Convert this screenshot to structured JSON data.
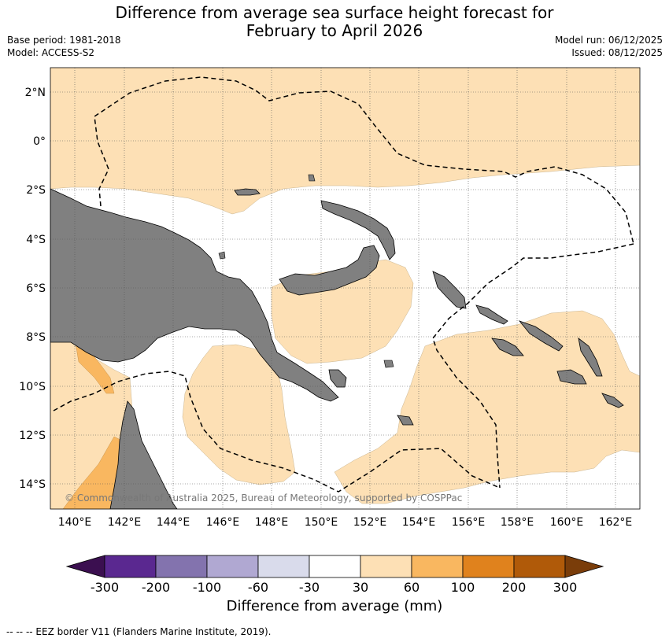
{
  "header": {
    "title_line1": "Difference from average sea surface height forecast for",
    "title_line2": "February to April 2026",
    "base_period": "Base period: 1981-2018",
    "model": "Model: ACCESS-S2",
    "model_run": "Model run: 06/12/2025",
    "issued": "Issued: 08/12/2025"
  },
  "map": {
    "lat_labels": [
      "2°N",
      "0°",
      "2°S",
      "4°S",
      "6°S",
      "8°S",
      "10°S",
      "12°S",
      "14°S"
    ],
    "lon_labels": [
      "140°E",
      "142°E",
      "144°E",
      "146°E",
      "148°E",
      "150°E",
      "152°E",
      "154°E",
      "156°E",
      "158°E",
      "160°E",
      "162°E"
    ],
    "copyright": "© Commonwealth of Australia 2025, Bureau of Meteorology, supported by COSPPac"
  },
  "colorbar": {
    "ticks": [
      "-300",
      "-200",
      "-100",
      "-60",
      "-30",
      "30",
      "60",
      "100",
      "200",
      "300"
    ],
    "colors": [
      "#3b0f50",
      "#5a2890",
      "#8373ae",
      "#b0a8d2",
      "#d9dbeb",
      "#ffffff",
      "#fde0b5",
      "#f9b760",
      "#e0821d",
      "#b05a09",
      "#7a3d0a"
    ],
    "label": "Difference from average (mm)"
  },
  "legend": {
    "eez_text": "--  --  -- EEZ border V11 (Flanders Marine Institute, 2019)."
  },
  "colors": {
    "land": "#808080",
    "light_orange": "#fde0b5",
    "mid_orange": "#f9b760",
    "grid": "#555555"
  }
}
